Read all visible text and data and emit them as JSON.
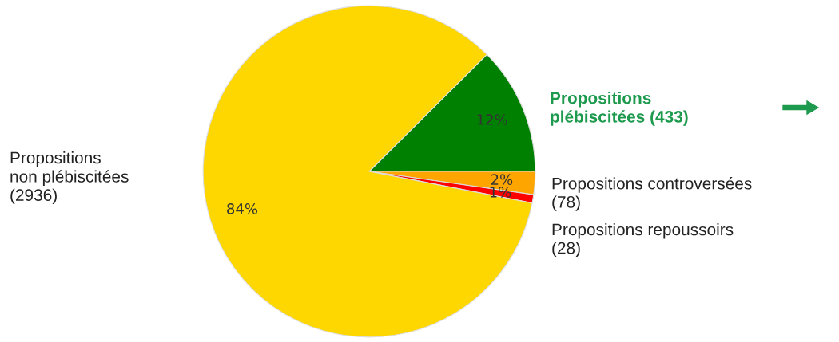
{
  "chart_data": {
    "type": "pie",
    "categories": [
      "Propositions\nplébiscitées (433)",
      "Propositions controversées\n(78)",
      "Propositions repoussoirs\n(28)",
      "Propositions\nnon plébiscitées\n(2936)"
    ],
    "values": [
      12.46,
      2.24,
      0.81,
      84.49
    ],
    "value_labels": [
      "12%",
      "2%",
      "1%",
      "84%"
    ],
    "colors": [
      "#008000",
      "#ffa500",
      "#ff0000",
      "#ffd700"
    ],
    "legend": false
  }
}
